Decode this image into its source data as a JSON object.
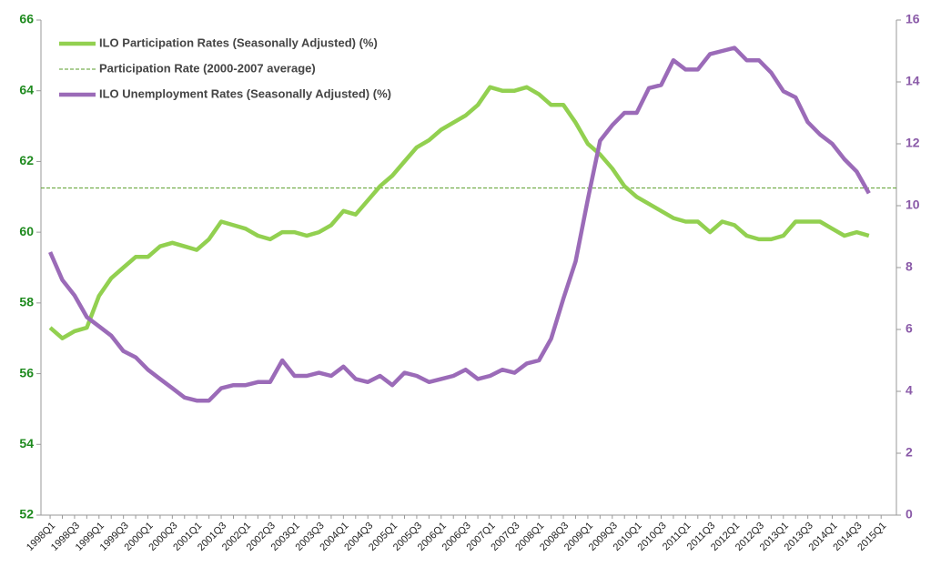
{
  "chart_data": {
    "type": "line",
    "categories": [
      "1998Q1",
      null,
      "1998Q3",
      null,
      "1999Q1",
      null,
      "1999Q3",
      null,
      "2000Q1",
      null,
      "2000Q3",
      null,
      "2001Q1",
      null,
      "2001Q3",
      null,
      "2002Q1",
      null,
      "2002Q3",
      null,
      "2003Q1",
      null,
      "2003Q3",
      null,
      "2004Q1",
      null,
      "2004Q3",
      null,
      "2005Q1",
      null,
      "2005Q3",
      null,
      "2006Q1",
      null,
      "2006Q3",
      null,
      "2007Q1",
      null,
      "2007Q3",
      null,
      "2008Q1",
      null,
      "2008Q3",
      null,
      "2009Q1",
      null,
      "2009Q3",
      null,
      "2010Q1",
      null,
      "2010Q3",
      null,
      "2011Q1",
      null,
      "2011Q3",
      null,
      "2012Q1",
      null,
      "2012Q3",
      null,
      "2013Q1",
      null,
      "2013Q3",
      null,
      "2014Q1",
      null,
      "2014Q3",
      null,
      "2015Q1"
    ],
    "series": [
      {
        "name": "ILO Participation Rates (Seasonally Adjusted) (%)",
        "color": "#92d050",
        "axis": "y",
        "values": [
          57.3,
          57.0,
          57.2,
          57.3,
          58.2,
          58.7,
          59.0,
          59.3,
          59.3,
          59.6,
          59.7,
          59.6,
          59.5,
          59.8,
          60.3,
          60.2,
          60.1,
          59.9,
          59.8,
          60.0,
          60.0,
          59.9,
          60.0,
          60.2,
          60.6,
          60.5,
          60.9,
          61.3,
          61.6,
          62.0,
          62.4,
          62.6,
          62.9,
          63.1,
          63.3,
          63.6,
          64.1,
          64.0,
          64.0,
          64.1,
          63.9,
          63.6,
          63.6,
          63.1,
          62.5,
          62.2,
          61.8,
          61.3,
          61.0,
          60.8,
          60.6,
          60.4,
          60.3,
          60.3,
          60.0,
          60.3,
          60.2,
          59.9,
          59.8,
          59.8,
          59.9,
          60.3,
          60.3,
          60.3,
          60.1,
          59.9,
          60.0,
          59.9,
          null
        ]
      },
      {
        "name": "ILO Unemployment Rates (Seasonally Adjusted) (%)",
        "color": "#9b6bb8",
        "axis": "y2",
        "values": [
          8.5,
          7.6,
          7.1,
          6.4,
          6.1,
          5.8,
          5.3,
          5.1,
          4.7,
          4.4,
          4.1,
          3.8,
          3.7,
          3.7,
          4.1,
          4.2,
          4.2,
          4.3,
          4.3,
          5.0,
          4.5,
          4.5,
          4.6,
          4.5,
          4.8,
          4.4,
          4.3,
          4.5,
          4.2,
          4.6,
          4.5,
          4.3,
          4.4,
          4.5,
          4.7,
          4.4,
          4.5,
          4.7,
          4.6,
          4.9,
          5.0,
          5.7,
          7.0,
          8.2,
          10.2,
          12.1,
          12.6,
          13.0,
          13.0,
          13.8,
          13.9,
          14.7,
          14.4,
          14.4,
          14.9,
          15.0,
          15.1,
          14.7,
          14.7,
          14.3,
          13.7,
          13.5,
          12.7,
          12.3,
          12.0,
          11.5,
          11.1,
          10.4,
          null
        ]
      }
    ],
    "reference": {
      "name": "Participation Rate (2000-2007 average)",
      "value": 61.25,
      "color": "#5a9e2a"
    },
    "ylim": [
      52,
      66
    ],
    "yticks": [
      52,
      54,
      56,
      58,
      60,
      62,
      64,
      66
    ],
    "y2lim": [
      0,
      16
    ],
    "y2ticks": [
      0,
      2,
      4,
      6,
      8,
      10,
      12,
      14,
      16
    ],
    "legend": "top-left"
  }
}
